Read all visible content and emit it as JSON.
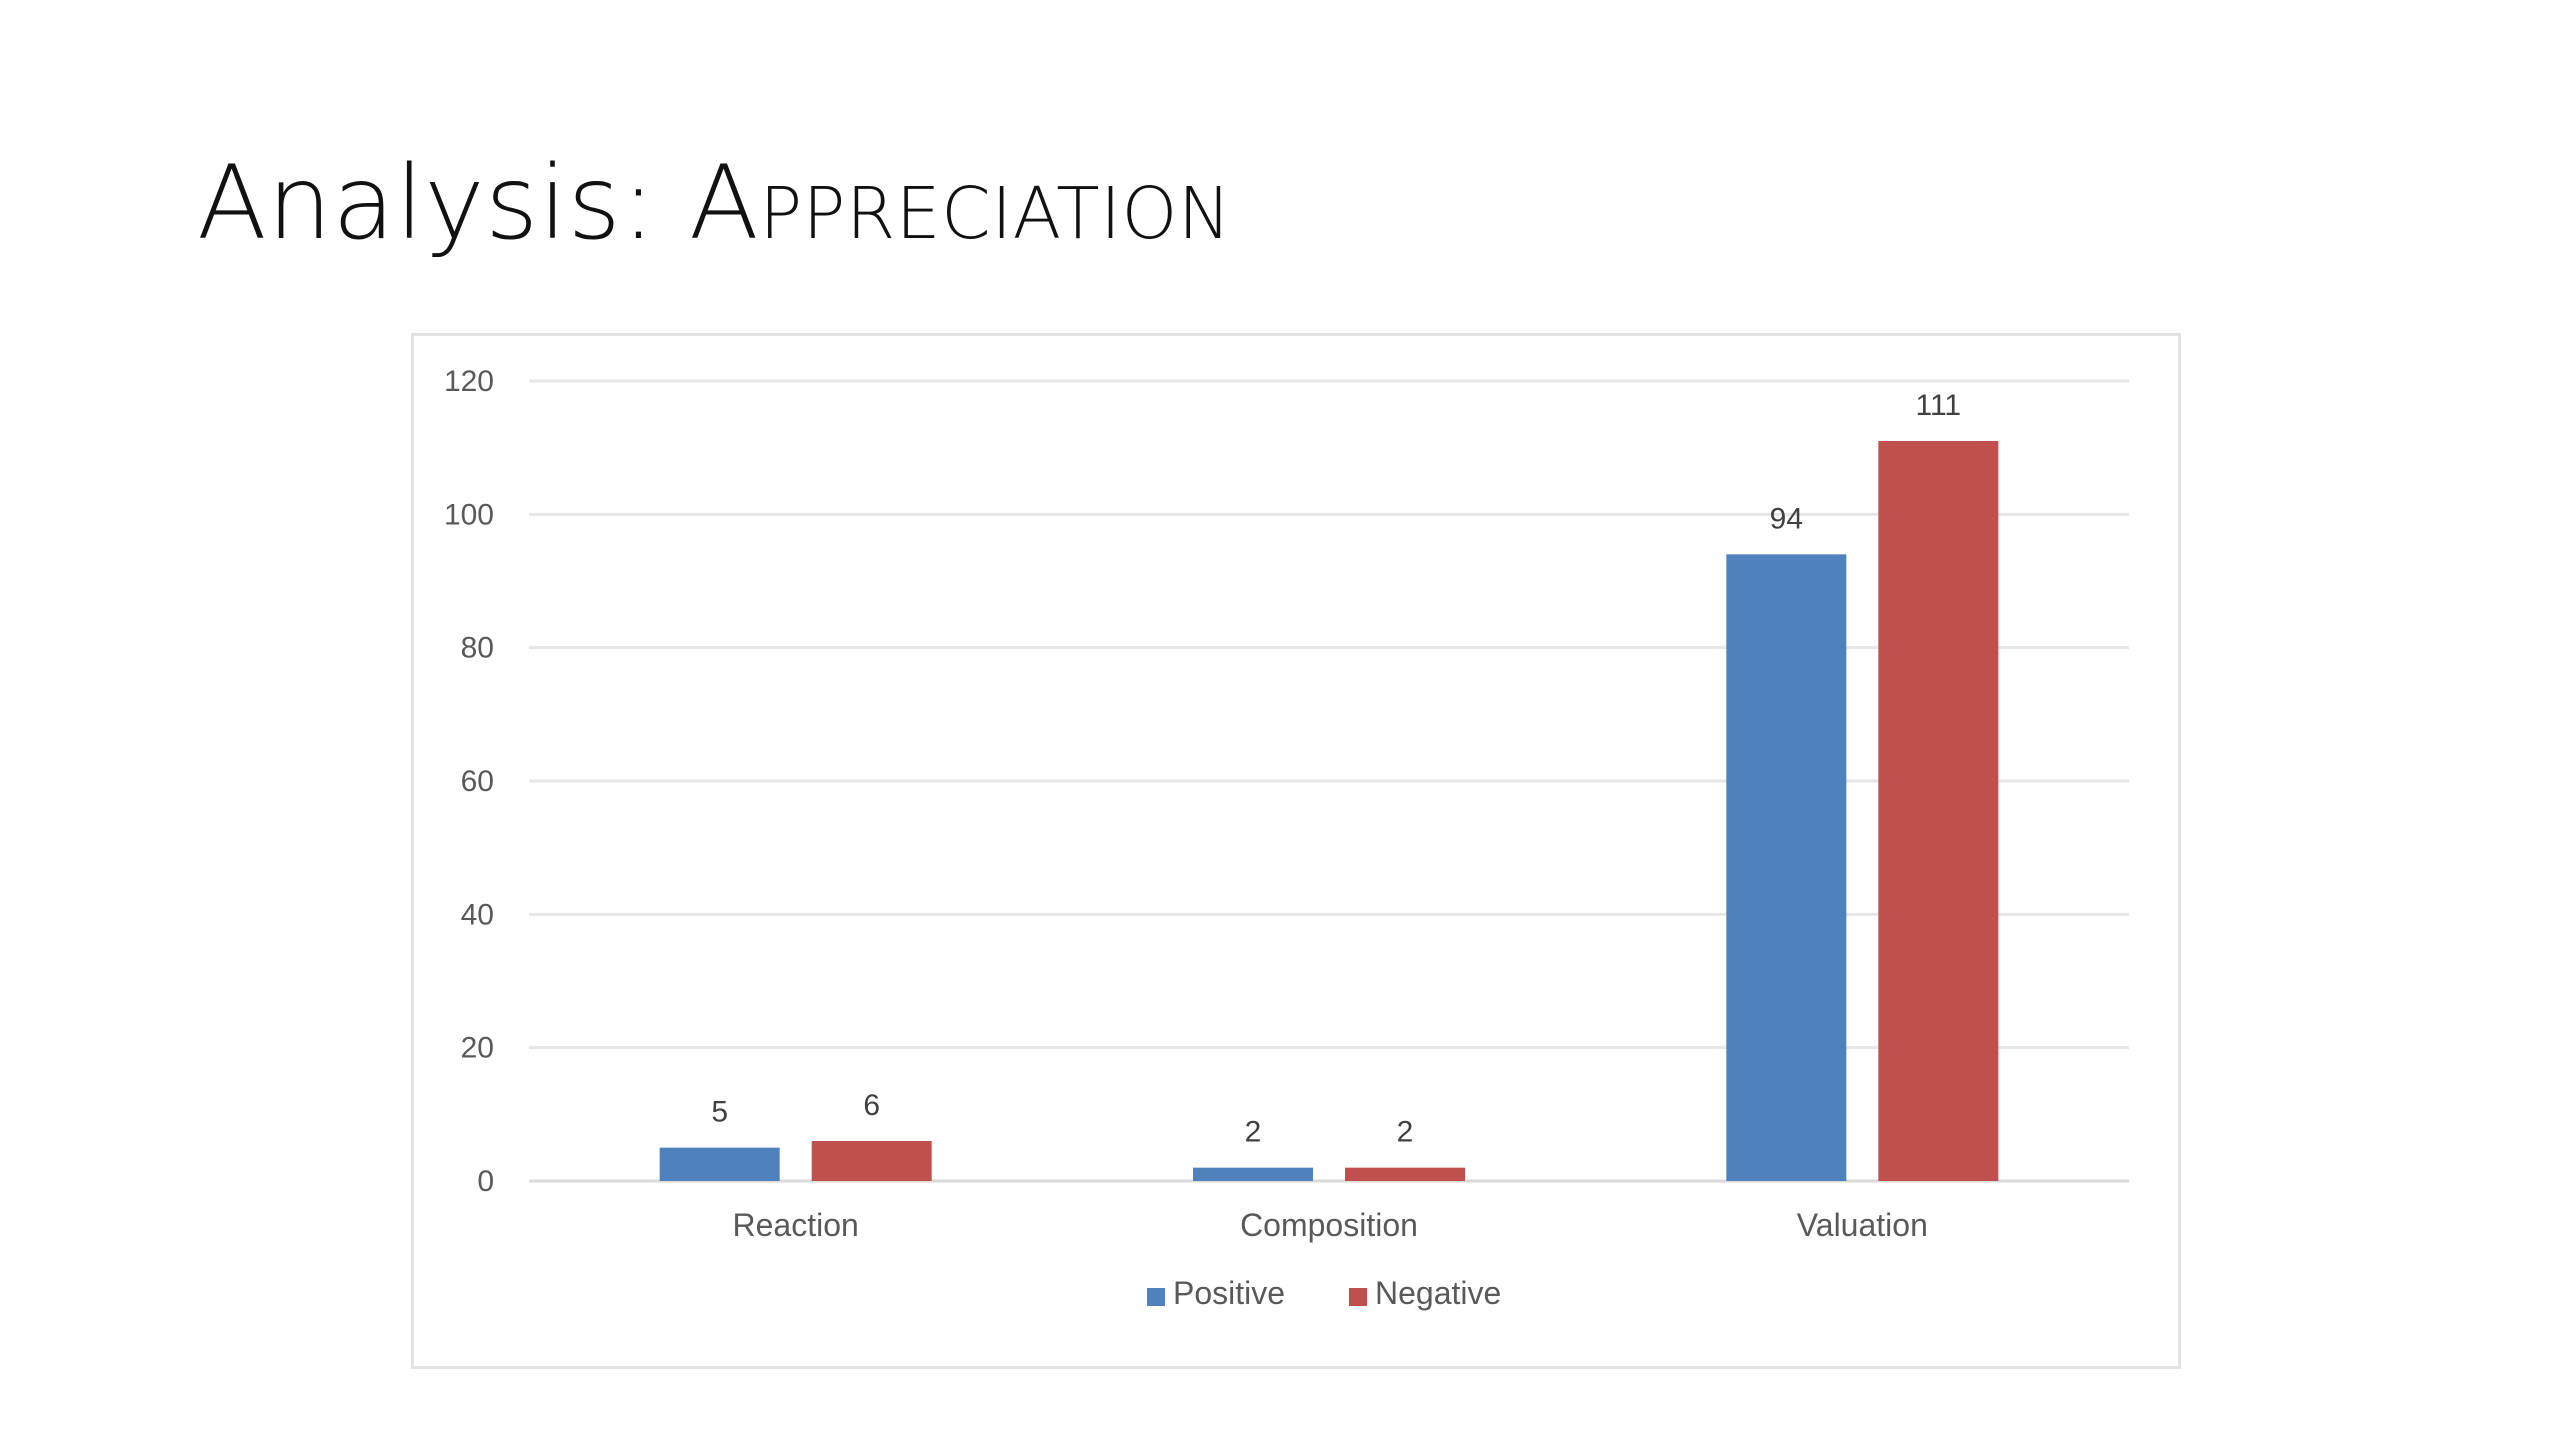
{
  "slide": {
    "title_prefix": "Analysis: ",
    "title_caps": "Appreciation"
  },
  "chart_data": {
    "type": "bar",
    "categories": [
      "Reaction",
      "Composition",
      "Valuation"
    ],
    "series": [
      {
        "name": "Positive",
        "values": [
          5,
          2,
          94
        ],
        "color": "#4F81BD"
      },
      {
        "name": "Negative",
        "values": [
          6,
          2,
          111
        ],
        "color": "#C0504D"
      }
    ],
    "ylim": [
      0,
      120
    ],
    "yticks": [
      0,
      20,
      40,
      60,
      80,
      100,
      120
    ],
    "data_labels": true,
    "grid": true,
    "legend": "bottom-center",
    "title": "",
    "xlabel": "",
    "ylabel": ""
  }
}
